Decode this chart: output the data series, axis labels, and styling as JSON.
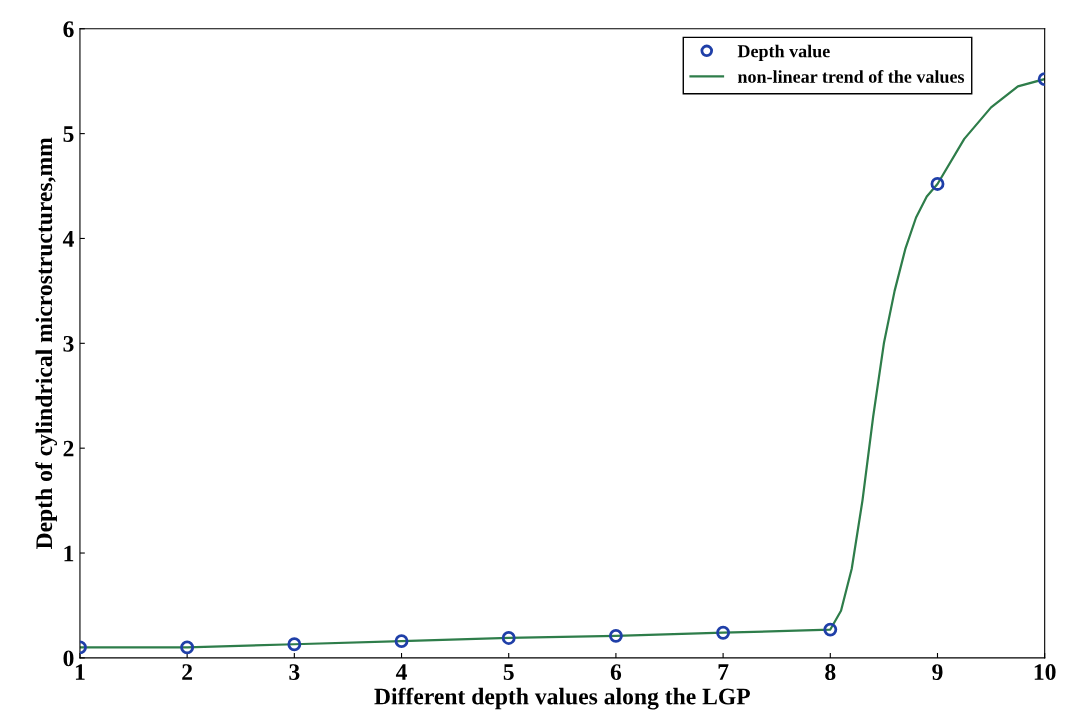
{
  "chart_data": {
    "type": "scatter",
    "xlabel": "Different depth values along the LGP",
    "ylabel": "Depth of cylindrical microstructures,mm",
    "x": [
      1,
      2,
      3,
      4,
      5,
      6,
      7,
      8,
      9,
      10
    ],
    "series": [
      {
        "name": "Depth value",
        "color": "#1f3fa8",
        "marker": "circle",
        "values": [
          0.1,
          0.1,
          0.13,
          0.16,
          0.19,
          0.21,
          0.24,
          0.27,
          4.52,
          5.52
        ]
      },
      {
        "name": "non-linear trend of the values",
        "type": "line",
        "color": "#2e7d4a",
        "line_style": "solid",
        "x": [
          1,
          2,
          3,
          4,
          5,
          6,
          7,
          8,
          8.1,
          8.2,
          8.3,
          8.4,
          8.5,
          8.6,
          8.7,
          8.8,
          8.9,
          9,
          9.25,
          9.5,
          9.75,
          10
        ],
        "values": [
          0.1,
          0.1,
          0.13,
          0.16,
          0.19,
          0.21,
          0.24,
          0.27,
          0.45,
          0.85,
          1.5,
          2.3,
          3.0,
          3.5,
          3.9,
          4.2,
          4.4,
          4.52,
          4.95,
          5.25,
          5.45,
          5.52
        ]
      }
    ],
    "xlim": [
      1,
      10
    ],
    "ylim": [
      0,
      6
    ],
    "xticks": [
      1,
      2,
      3,
      4,
      5,
      6,
      7,
      8,
      9,
      10
    ],
    "yticks": [
      0,
      1,
      2,
      3,
      4,
      5,
      6
    ],
    "grid": false,
    "legend": "top right"
  }
}
